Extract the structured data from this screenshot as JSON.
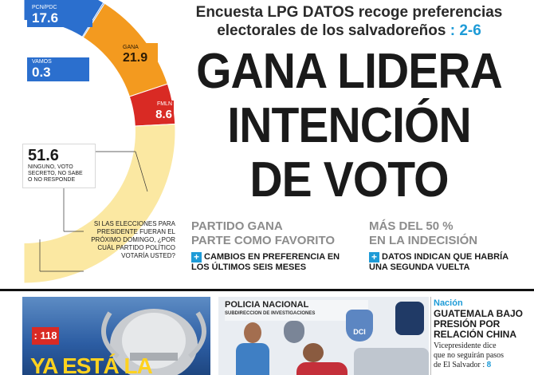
{
  "chart_data": {
    "type": "pie",
    "slices": [
      {
        "name": "PCN/PDC",
        "value": 17.6,
        "color": "#2b6fce"
      },
      {
        "name": "VAMOS",
        "value": 0.3,
        "color": "#3a79d6"
      },
      {
        "name": "GANA",
        "value": 21.9,
        "color": "#f39a1f"
      },
      {
        "name": "FMLN",
        "value": 8.6,
        "color": "#d92a24"
      },
      {
        "name": "NINGUNO, VOTO SECRETO, NO SABE O NO RESPONDE",
        "value": 51.6,
        "color": "#fbe8a2"
      }
    ],
    "question": "SI LAS ELECCIONES PARA PRESIDENTE FUERAN EL PRÓXIMO DOMINGO, ¿POR CUÁL PARTIDO POLÍTICO VOTARÍA USTED?"
  },
  "labels": {
    "pcn_name": "PCN/PDC",
    "pcn_value": "17.6",
    "vamos_name": "VAMOS",
    "vamos_value": "0.3",
    "gana_name": "GANA",
    "gana_value": "21.9",
    "fmln_name": "FMLN",
    "fmln_value": "8.6",
    "ninguno_value": "51.6",
    "ninguno_line1": "NINGUNO, VOTO",
    "ninguno_line2": "SECRETO, NO SABE",
    "ninguno_line3": "O NO RESPONDE",
    "q1": "SI LAS ELECCIONES PARA",
    "q2": "PRESIDENTE FUERAN EL",
    "q3": "PRÓXIMO DOMINGO, ¿POR",
    "q4": "CUÁL PARTIDO POLÍTICO",
    "q5": "VOTARÍA USTED?"
  },
  "header": {
    "kicker_line1": "Encuesta LPG DATOS recoge preferencias",
    "kicker_line2": "electorales de los salvadoreños",
    "kicker_pages": ": 2-6",
    "headline_line1": "GANA LIDERA",
    "headline_line2": "INTENCIÓN",
    "headline_line3": "DE VOTO"
  },
  "subheads": {
    "left_line1": "PARTIDO GANA",
    "left_line2": "PARTE COMO FAVORITO",
    "left_detail1": "CAMBIOS EN PREFERENCIA EN",
    "left_detail2": "LOS ÚLTIMOS SEIS MESES",
    "right_line1": "MÁS DEL 50 %",
    "right_line2": "EN LA INDECISIÓN",
    "right_detail1": "DATOS INDICAN QUE HABRÍA",
    "right_detail2": "UNA SEGUNDA VUELTA",
    "plus": "+"
  },
  "bottom": {
    "sports_page": ": 118",
    "sports_headline": "YA ESTÁ LA",
    "police_sign_line1": "POLICIA NACIONAL",
    "police_sign_line2": "SUBDIRECCION DE INVESTIGACIONES",
    "dci": "DCI",
    "section": "Nación",
    "nacion_h1": "GUATEMALA BAJO",
    "nacion_h2": "PRESIÓN POR",
    "nacion_h3": "RELACIÓN CHINA",
    "nacion_b1": "Vicepresidente dice",
    "nacion_b2": "que no seguirán pasos",
    "nacion_b3": "de El Salvador :",
    "nacion_page": "8"
  }
}
